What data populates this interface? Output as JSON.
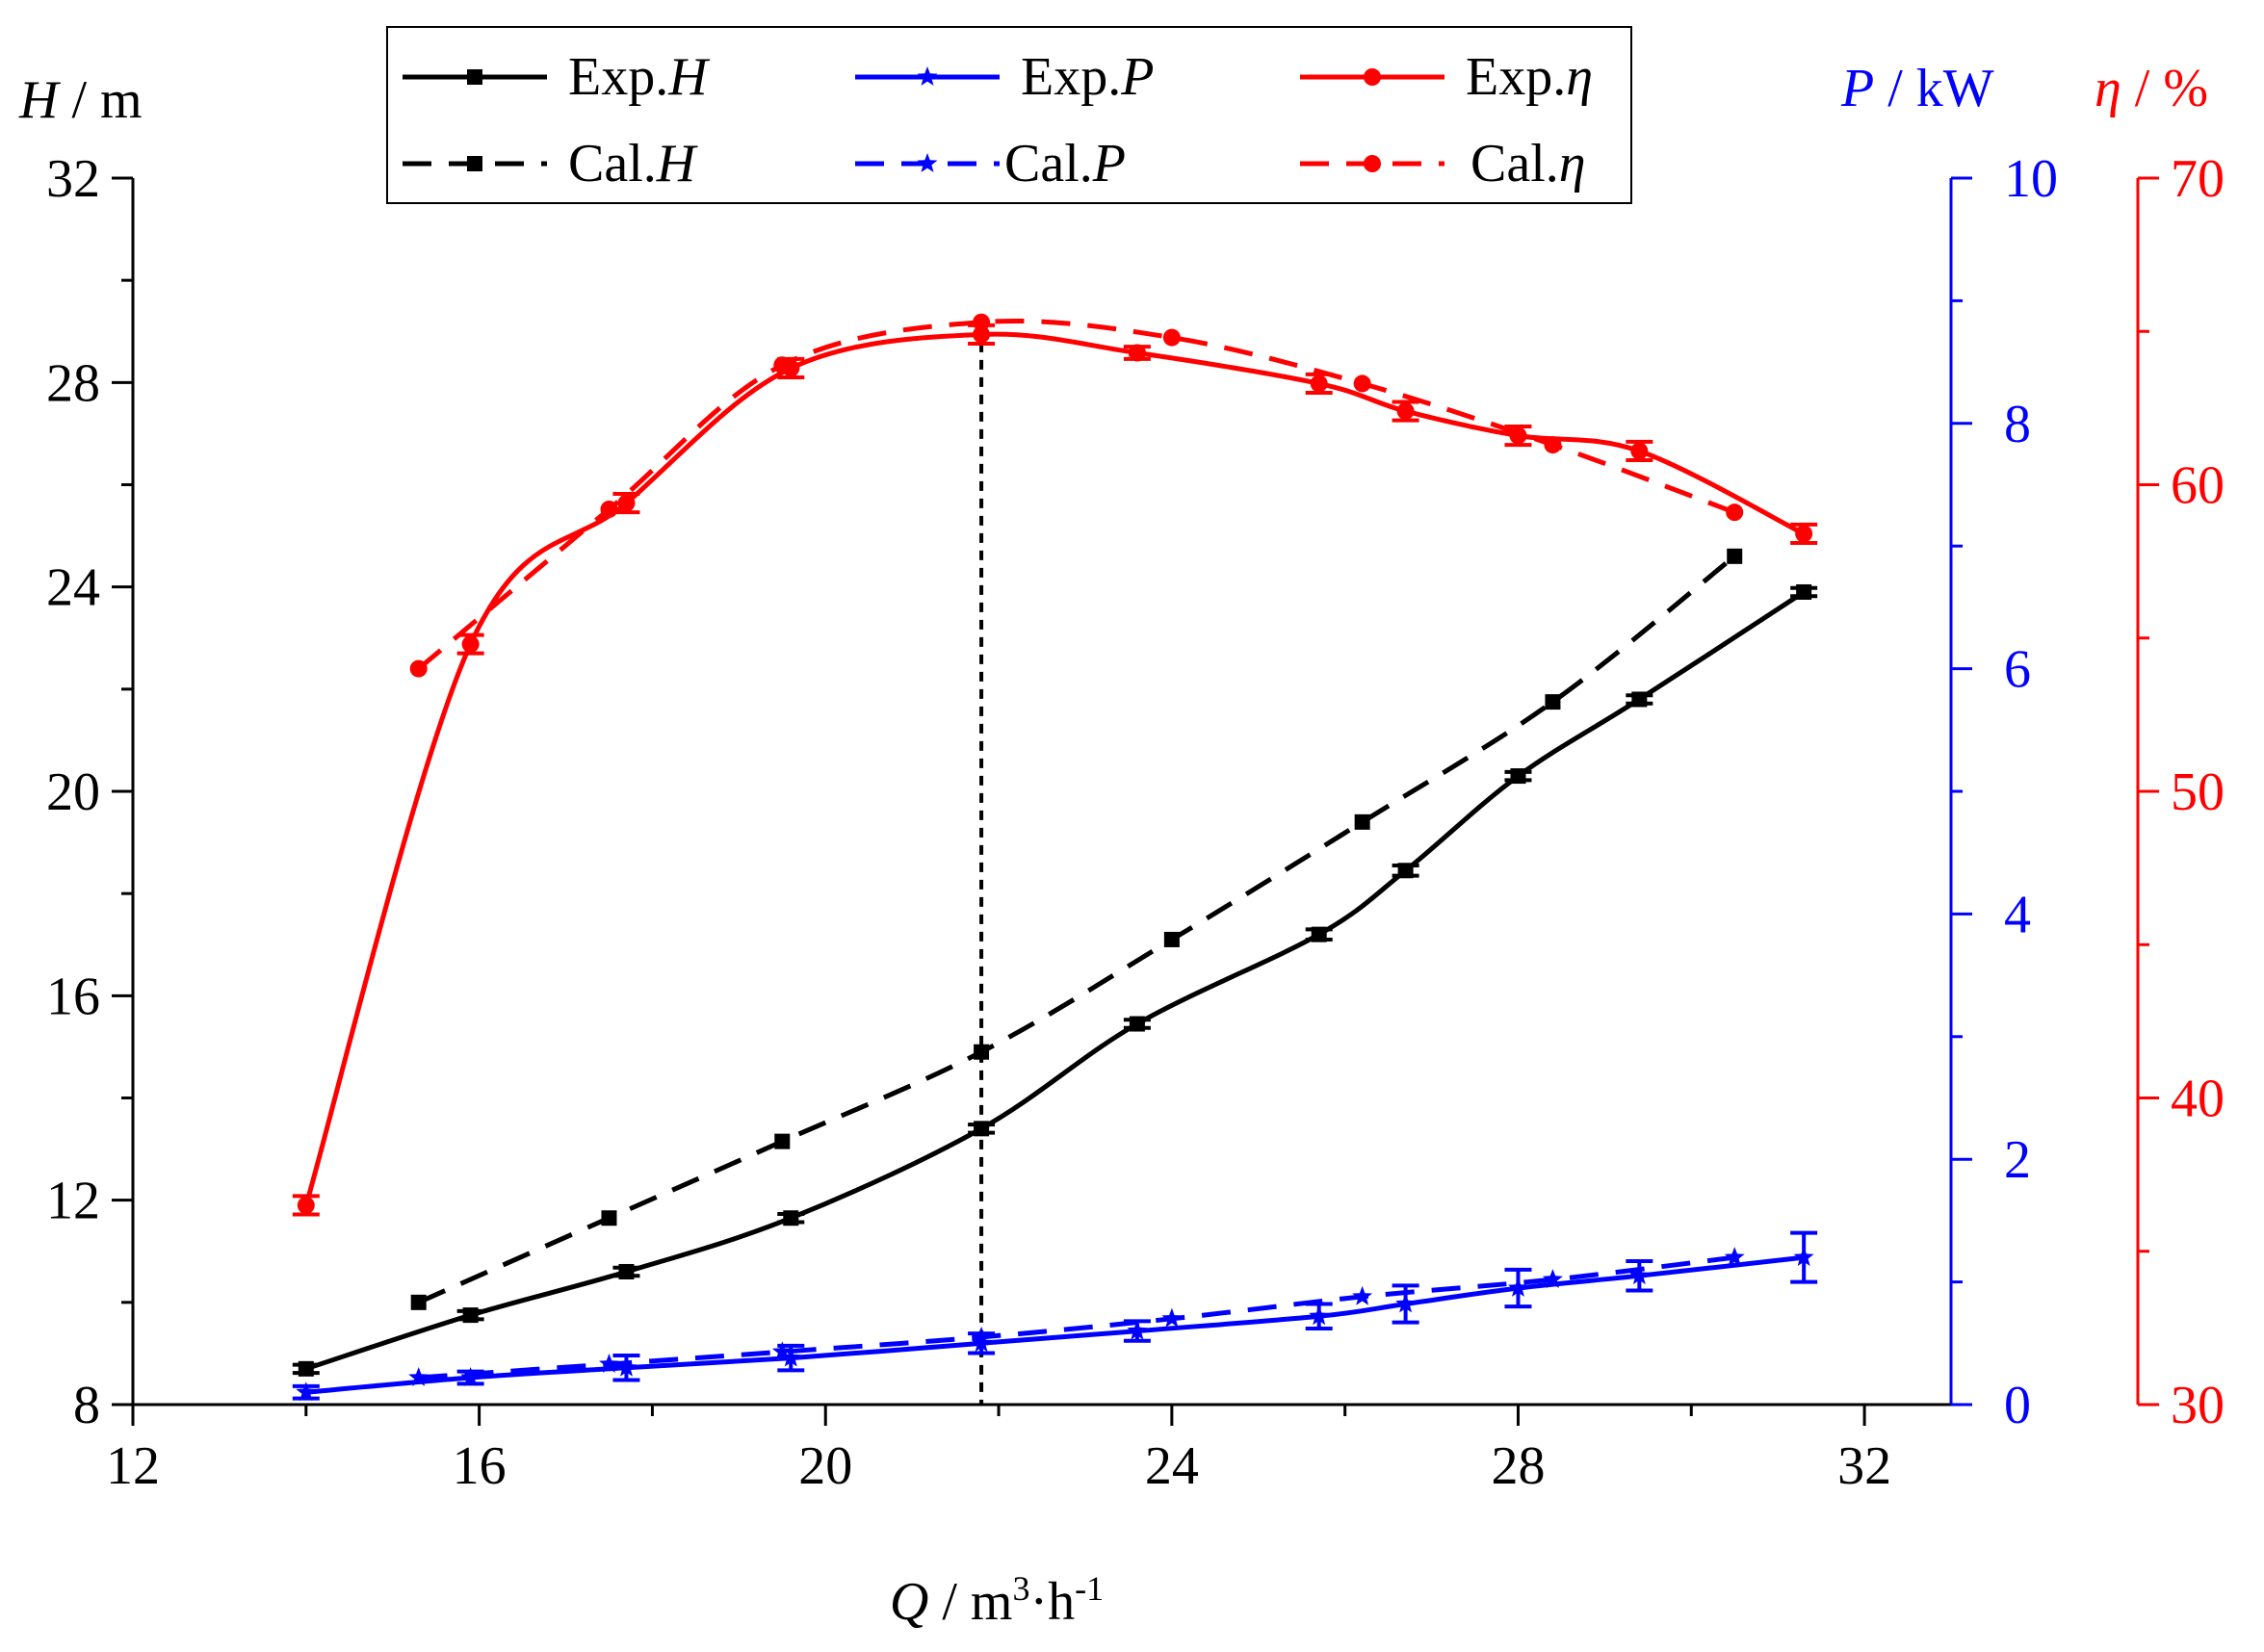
{
  "chart_data": {
    "type": "line",
    "xlabel": "m³·h⁻¹",
    "xlabel_parts": {
      "var": "Q",
      "sep": " / m",
      "sup1": "3",
      "mid": "·h",
      "sup2": "-1"
    },
    "xlim": [
      12,
      33
    ],
    "x_ticks": [
      12,
      16,
      20,
      24,
      28,
      32
    ],
    "axes": {
      "H": {
        "label_var": "H",
        "label_unit": " / m",
        "lim": [
          8,
          32
        ],
        "ticks": [
          8,
          12,
          16,
          20,
          24,
          28,
          32
        ],
        "color": "#000000"
      },
      "P": {
        "label_var": "P",
        "label_unit": " / kW",
        "lim": [
          0,
          10
        ],
        "ticks": [
          0,
          2,
          4,
          6,
          8,
          10
        ],
        "color": "#0000ff"
      },
      "eta": {
        "label_var": "η",
        "label_unit": " / %",
        "lim": [
          30,
          70
        ],
        "ticks": [
          30,
          40,
          50,
          60,
          70
        ],
        "color": "#ff0000"
      }
    },
    "series": [
      {
        "name": "Exp.H",
        "name_prefix": "Exp.",
        "name_var": "H",
        "axis": "H",
        "style": "solid",
        "marker": "square",
        "color": "#000000",
        "x": [
          14.0,
          15.9,
          17.7,
          19.6,
          21.8,
          23.6,
          25.7,
          26.7,
          28.0,
          29.4,
          31.3
        ],
        "y": [
          8.7,
          9.75,
          10.6,
          11.65,
          13.4,
          15.45,
          17.2,
          18.45,
          20.3,
          21.8,
          23.9
        ],
        "err": [
          0.08,
          0.08,
          0.08,
          0.08,
          0.08,
          0.08,
          0.1,
          0.1,
          0.08,
          0.08,
          0.08
        ]
      },
      {
        "name": "Cal.H",
        "name_prefix": "Cal.",
        "name_var": "H",
        "axis": "H",
        "style": "dashed",
        "marker": "square",
        "color": "#000000",
        "x": [
          15.3,
          17.5,
          19.5,
          21.8,
          24.0,
          26.2,
          28.4,
          30.5
        ],
        "y": [
          10.0,
          11.65,
          13.15,
          14.9,
          17.1,
          19.4,
          21.75,
          24.6
        ]
      },
      {
        "name": "Exp.P",
        "name_prefix": "Exp.",
        "name_var": "P",
        "axis": "P",
        "style": "solid",
        "marker": "star",
        "color": "#0000ff",
        "x": [
          14.0,
          15.9,
          17.7,
          19.6,
          21.8,
          23.6,
          25.7,
          26.7,
          28.0,
          29.4,
          31.3
        ],
        "y": [
          0.1,
          0.22,
          0.3,
          0.38,
          0.5,
          0.6,
          0.72,
          0.82,
          0.95,
          1.05,
          1.2
        ],
        "err": [
          0.05,
          0.05,
          0.1,
          0.1,
          0.08,
          0.08,
          0.1,
          0.15,
          0.15,
          0.12,
          0.2
        ]
      },
      {
        "name": "Cal.P",
        "name_prefix": "Cal.",
        "name_var": "P",
        "axis": "P",
        "style": "dashed",
        "marker": "star",
        "color": "#0000ff",
        "x": [
          15.3,
          17.5,
          19.5,
          21.8,
          24.0,
          26.2,
          28.4,
          30.5
        ],
        "y": [
          0.22,
          0.33,
          0.43,
          0.55,
          0.7,
          0.88,
          1.02,
          1.2
        ]
      },
      {
        "name": "Exp.η",
        "name_prefix": "Exp.",
        "name_var": "η",
        "axis": "eta",
        "style": "solid",
        "marker": "circle",
        "color": "#ff0000",
        "x": [
          14.0,
          15.9,
          17.7,
          19.6,
          21.8,
          23.6,
          25.7,
          26.7,
          28.0,
          29.4,
          31.3
        ],
        "y": [
          36.5,
          54.8,
          59.4,
          63.8,
          64.9,
          64.3,
          63.3,
          62.4,
          61.6,
          61.1,
          58.4
        ],
        "err": [
          0.3,
          0.3,
          0.3,
          0.3,
          0.3,
          0.2,
          0.3,
          0.3,
          0.3,
          0.3,
          0.3
        ]
      },
      {
        "name": "Cal.η",
        "name_prefix": "Cal.",
        "name_var": "η",
        "axis": "eta",
        "style": "dashed",
        "marker": "circle",
        "color": "#ff0000",
        "x": [
          15.3,
          17.5,
          19.5,
          21.8,
          24.0,
          26.2,
          28.4,
          30.5
        ],
        "y": [
          54.0,
          59.2,
          63.9,
          65.3,
          64.8,
          63.3,
          61.3,
          59.1
        ]
      }
    ],
    "reference_line": {
      "x": 21.8,
      "style": "dotted"
    },
    "legend": {
      "placement": "top-center",
      "columns": 3
    }
  }
}
